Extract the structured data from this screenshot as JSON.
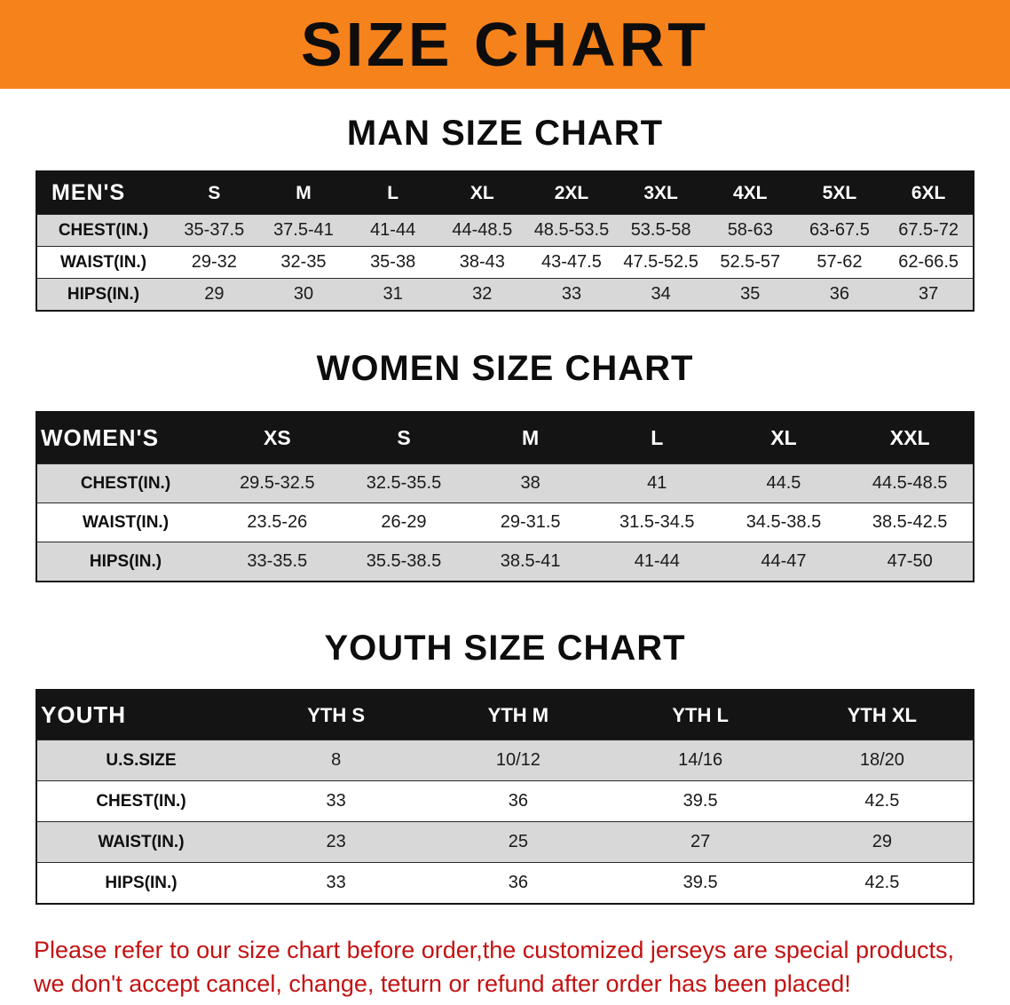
{
  "banner": {
    "title": "SIZE CHART"
  },
  "sections": [
    {
      "heading": "MAN SIZE CHART",
      "table": {
        "header": [
          "MEN'S",
          "S",
          "M",
          "L",
          "XL",
          "2XL",
          "3XL",
          "4XL",
          "5XL",
          "6XL"
        ],
        "rows": [
          [
            "CHEST(IN.)",
            "35-37.5",
            "37.5-41",
            "41-44",
            "44-48.5",
            "48.5-53.5",
            "53.5-58",
            "58-63",
            "63-67.5",
            "67.5-72"
          ],
          [
            "WAIST(IN.)",
            "29-32",
            "32-35",
            "35-38",
            "38-43",
            "43-47.5",
            "47.5-52.5",
            "52.5-57",
            "57-62",
            "62-66.5"
          ],
          [
            "HIPS(IN.)",
            "29",
            "30",
            "31",
            "32",
            "33",
            "34",
            "35",
            "36",
            "37"
          ]
        ]
      }
    },
    {
      "heading": "WOMEN SIZE CHART",
      "table": {
        "header": [
          "WOMEN'S",
          "XS",
          "S",
          "M",
          "L",
          "XL",
          "XXL"
        ],
        "rows": [
          [
            "CHEST(IN.)",
            "29.5-32.5",
            "32.5-35.5",
            "38",
            "41",
            "44.5",
            "44.5-48.5"
          ],
          [
            "WAIST(IN.)",
            "23.5-26",
            "26-29",
            "29-31.5",
            "31.5-34.5",
            "34.5-38.5",
            "38.5-42.5"
          ],
          [
            "HIPS(IN.)",
            "33-35.5",
            "35.5-38.5",
            "38.5-41",
            "41-44",
            "44-47",
            "47-50"
          ]
        ]
      }
    },
    {
      "heading": "YOUTH SIZE CHART",
      "table": {
        "header": [
          "YOUTH",
          "YTH S",
          "YTH M",
          "YTH L",
          "YTH XL"
        ],
        "rows": [
          [
            "U.S.SIZE",
            "8",
            "10/12",
            "14/16",
            "18/20"
          ],
          [
            "CHEST(IN.)",
            "33",
            "36",
            "39.5",
            "42.5"
          ],
          [
            "WAIST(IN.)",
            "23",
            "25",
            "27",
            "29"
          ],
          [
            "HIPS(IN.)",
            "33",
            "36",
            "39.5",
            "42.5"
          ]
        ]
      }
    }
  ],
  "disclaimer": {
    "line1": "Please refer to our size chart before order,the customized jerseys are special products,",
    "line2": "we don't accept cancel, change, teturn or refund after order has been placed!"
  },
  "colors": {
    "banner_orange": "#f6821c",
    "header_black": "#141414",
    "row_gray": "#d8d8d8",
    "row_white": "#ffffff",
    "disclaimer_red": "#c31212"
  }
}
